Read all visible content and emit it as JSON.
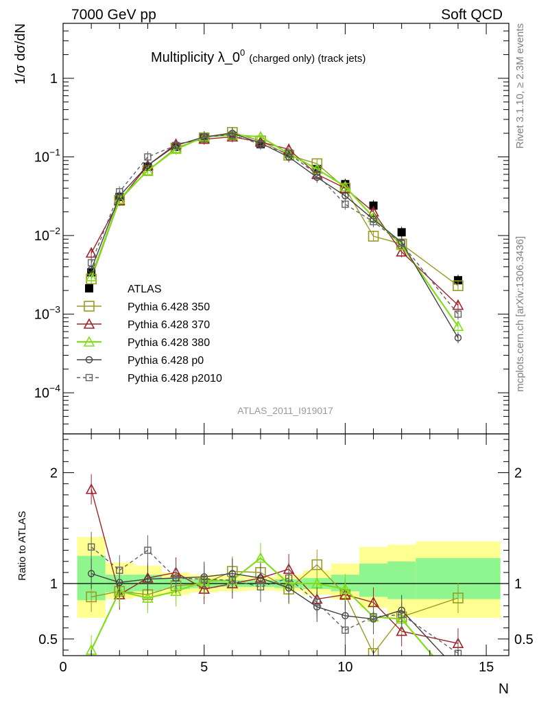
{
  "header": {
    "left": "7000 GeV pp",
    "right": "Soft QCD"
  },
  "side_labels": {
    "top": "Rivet 3.1.10, ≥ 2.3M events",
    "bottom": "mcplots.cern.ch [arXiv:1306.3436]"
  },
  "chart_data": [
    {
      "type": "line",
      "title_main": "Multiplicity λ_0",
      "title_sup": "0",
      "title_small": "(charged only) (track jets)",
      "ylabel": "1/σ dσ/dN",
      "yscale": "log",
      "ylim": [
        3e-05,
        5
      ],
      "xlim": [
        0,
        15.8
      ],
      "y_ticks": [
        {
          "value": 1,
          "label": "1"
        },
        {
          "value": 0.1,
          "label": "10",
          "sup": "−1"
        },
        {
          "value": 0.01,
          "label": "10",
          "sup": "−2"
        },
        {
          "value": 0.001,
          "label": "10",
          "sup": "−3"
        },
        {
          "value": 0.0001,
          "label": "10",
          "sup": "−4"
        }
      ],
      "watermark": "ATLAS_2011_I919017",
      "legend_position": "bottom-left",
      "series": [
        {
          "name": "ATLAS",
          "color": "#000000",
          "marker": "filled-square",
          "style": "points",
          "x": [
            1,
            2,
            3,
            4,
            5,
            6,
            7,
            8,
            9,
            10,
            11,
            12,
            14
          ],
          "y": [
            0.0034,
            0.031,
            0.075,
            0.135,
            0.175,
            0.185,
            0.145,
            0.11,
            0.07,
            0.045,
            0.024,
            0.011,
            0.0027
          ]
        },
        {
          "name": "Pythia 6.428 350",
          "color": "#9a9a1f",
          "marker": "open-square",
          "style": "solid",
          "x": [
            1,
            2,
            3,
            4,
            5,
            6,
            7,
            8,
            9,
            10,
            11,
            12,
            14
          ],
          "y": [
            0.0028,
            0.028,
            0.067,
            0.13,
            0.175,
            0.205,
            0.16,
            0.105,
            0.082,
            0.04,
            0.0098,
            0.0078,
            0.0023
          ]
        },
        {
          "name": "Pythia 6.428 370",
          "color": "#a0202a",
          "marker": "open-triangle",
          "style": "solid",
          "x": [
            1,
            2,
            3,
            4,
            5,
            6,
            7,
            8,
            9,
            10,
            11,
            12,
            14
          ],
          "y": [
            0.006,
            0.028,
            0.078,
            0.145,
            0.168,
            0.18,
            0.155,
            0.125,
            0.06,
            0.04,
            0.02,
            0.0062,
            0.0013
          ]
        },
        {
          "name": "Pythia 6.428 380",
          "color": "#7fdd1a",
          "marker": "open-triangle",
          "style": "solid",
          "x": [
            1,
            2,
            3,
            4,
            5,
            6,
            7,
            8,
            9,
            10,
            11,
            12,
            14
          ],
          "y": [
            0.003,
            0.029,
            0.067,
            0.125,
            0.18,
            0.19,
            0.18,
            0.11,
            0.07,
            0.042,
            0.017,
            0.0075,
            0.0007
          ]
        },
        {
          "name": "Pythia 6.428 p0",
          "color": "#404040",
          "marker": "open-circle",
          "style": "solid",
          "x": [
            1,
            2,
            3,
            4,
            5,
            6,
            7,
            8,
            9,
            10,
            11,
            12,
            14
          ],
          "y": [
            0.0037,
            0.032,
            0.078,
            0.14,
            0.18,
            0.2,
            0.15,
            0.1,
            0.055,
            0.032,
            0.016,
            0.0082,
            0.0005
          ]
        },
        {
          "name": "Pythia 6.428 p2010",
          "color": "#606060",
          "marker": "open-square-small",
          "style": "dashed",
          "x": [
            1,
            2,
            3,
            4,
            5,
            6,
            7,
            8,
            9,
            10,
            11,
            12,
            14
          ],
          "y": [
            0.0045,
            0.036,
            0.1,
            0.14,
            0.18,
            0.19,
            0.145,
            0.11,
            0.06,
            0.025,
            0.015,
            0.0079,
            0.001
          ]
        }
      ]
    },
    {
      "type": "line",
      "ylabel": "Ratio to ATLAS",
      "xlabel": "N",
      "xlim": [
        0,
        15.8
      ],
      "ylim": [
        0.35,
        2.35
      ],
      "x_ticks": [
        0,
        5,
        10,
        15
      ],
      "y_ticks": [
        0.5,
        1,
        2
      ],
      "reference": 1,
      "bands": {
        "bins": [
          [
            0.5,
            1.5
          ],
          [
            1.5,
            2.5
          ],
          [
            2.5,
            3.5
          ],
          [
            3.5,
            4.5
          ],
          [
            4.5,
            5.5
          ],
          [
            5.5,
            6.5
          ],
          [
            6.5,
            7.5
          ],
          [
            7.5,
            8.5
          ],
          [
            8.5,
            9.5
          ],
          [
            9.5,
            10.5
          ],
          [
            10.5,
            11.5
          ],
          [
            11.5,
            12.5
          ],
          [
            12.5,
            15.5
          ]
        ],
        "outer": [
          [
            0.69,
            1.42
          ],
          [
            0.86,
            1.19
          ],
          [
            0.88,
            1.16
          ],
          [
            0.9,
            1.1
          ],
          [
            0.92,
            1.08
          ],
          [
            0.93,
            1.07
          ],
          [
            0.94,
            1.06
          ],
          [
            0.93,
            1.08
          ],
          [
            0.9,
            1.12
          ],
          [
            0.86,
            1.18
          ],
          [
            0.78,
            1.33
          ],
          [
            0.7,
            1.35
          ],
          [
            0.69,
            1.38
          ]
        ],
        "inner": [
          [
            0.85,
            1.25
          ],
          [
            0.92,
            1.08
          ],
          [
            0.93,
            1.08
          ],
          [
            0.95,
            1.05
          ],
          [
            0.96,
            1.04
          ],
          [
            0.97,
            1.03
          ],
          [
            0.97,
            1.03
          ],
          [
            0.96,
            1.04
          ],
          [
            0.95,
            1.05
          ],
          [
            0.93,
            1.08
          ],
          [
            0.88,
            1.18
          ],
          [
            0.86,
            1.2
          ],
          [
            0.86,
            1.23
          ]
        ]
      },
      "series": [
        {
          "name": "Pythia 6.428 350",
          "x": [
            1,
            2,
            3,
            4,
            5,
            6,
            7,
            8,
            9,
            10,
            11,
            12,
            14
          ],
          "y": [
            0.88,
            0.93,
            0.9,
            0.98,
            1.0,
            1.11,
            1.1,
            0.95,
            1.17,
            0.9,
            0.37,
            0.7,
            0.87
          ]
        },
        {
          "name": "Pythia 6.428 370",
          "x": [
            1,
            2,
            3,
            4,
            5,
            6,
            7,
            8,
            9,
            10,
            11,
            12,
            14
          ],
          "y": [
            1.85,
            0.9,
            1.05,
            1.1,
            0.95,
            1.0,
            1.05,
            1.13,
            0.86,
            0.9,
            0.83,
            0.57,
            0.46
          ]
        },
        {
          "name": "Pythia 6.428 380",
          "x": [
            1,
            2,
            3,
            4,
            5,
            6,
            7,
            8,
            9,
            10,
            11,
            12,
            13.1
          ],
          "y": [
            0.4,
            0.93,
            0.87,
            0.93,
            1.02,
            1.03,
            1.23,
            1.0,
            1.0,
            0.95,
            0.7,
            0.68,
            0.35
          ]
        },
        {
          "name": "Pythia 6.428 p0",
          "x": [
            1,
            2,
            3,
            4,
            5,
            6,
            7,
            8,
            9,
            10,
            11,
            12,
            13.5
          ],
          "y": [
            1.09,
            1.01,
            1.04,
            1.05,
            1.06,
            1.09,
            1.05,
            0.96,
            0.79,
            0.71,
            0.68,
            0.76,
            0.35
          ]
        },
        {
          "name": "Pythia 6.428 p2010",
          "x": [
            1,
            2,
            3,
            4,
            5,
            6,
            7,
            8,
            9,
            10,
            11,
            12,
            14
          ],
          "y": [
            1.33,
            1.12,
            1.3,
            1.05,
            1.04,
            1.03,
            0.97,
            1.05,
            0.83,
            0.58,
            0.7,
            0.72,
            0.37
          ]
        }
      ]
    }
  ]
}
